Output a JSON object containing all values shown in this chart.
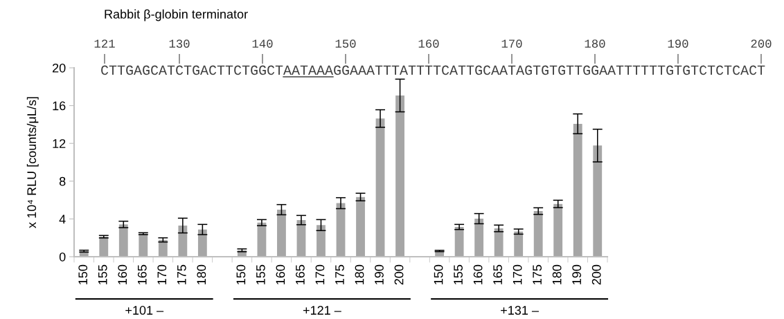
{
  "chart_data": {
    "type": "bar",
    "title": "Rabbit β-globin terminator",
    "ylabel": "x 10⁴ RLU [counts/μL/s]",
    "categories": [
      "150",
      "155",
      "160",
      "165",
      "170",
      "175",
      "180",
      null,
      "150",
      "155",
      "160",
      "165",
      "170",
      "175",
      "180",
      "190",
      "200",
      null,
      "150",
      "155",
      "160",
      "165",
      "170",
      "175",
      "180",
      "190",
      "200"
    ],
    "values": [
      0.59,
      2.12,
      3.42,
      2.44,
      1.78,
      3.3,
      2.88,
      null,
      0.68,
      3.61,
      4.98,
      3.88,
      3.35,
      5.67,
      6.32,
      14.63,
      17.07,
      null,
      0.61,
      3.15,
      4.03,
      3.0,
      2.66,
      4.83,
      5.59,
      14.07,
      11.77
    ],
    "errors": [
      0.1,
      0.13,
      0.34,
      0.1,
      0.22,
      0.78,
      0.54,
      null,
      0.15,
      0.32,
      0.54,
      0.49,
      0.58,
      0.58,
      0.4,
      0.93,
      1.73,
      null,
      0.07,
      0.27,
      0.54,
      0.35,
      0.27,
      0.35,
      0.39,
      1.05,
      1.73
    ],
    "color": "#a6a6a6",
    "ylim": [
      0,
      20
    ],
    "yticks": [
      0,
      4,
      8,
      12,
      16,
      20
    ],
    "x2lim": [
      121,
      200
    ],
    "x2ticks": [
      121,
      130,
      140,
      150,
      160,
      170,
      180,
      190,
      200
    ],
    "annotations": [
      "CTTGAGCATCTGACTTCTGGCT",
      "AATAAA",
      "GGAAATTTATTTTCATTGCAATAGTGTGTTGGAATTTTTTGTGTCTCTCACT",
      "+101 –",
      "+121 –",
      "+131 –"
    ],
    "grid": false,
    "legend": false
  }
}
